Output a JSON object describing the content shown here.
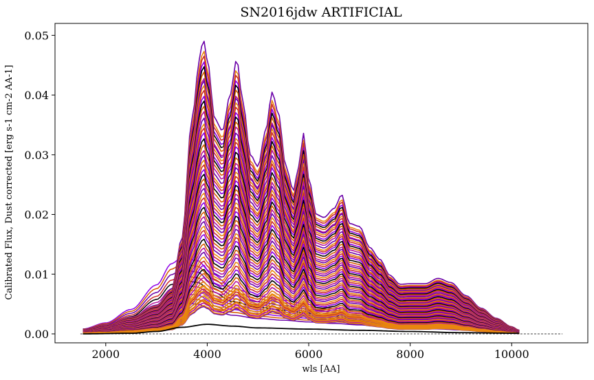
{
  "chart_data": {
    "type": "line",
    "title": "SN2016jdw ARTIFICIAL",
    "xlabel": "wls [AA]",
    "ylabel": "Calibrated Flux, Dust corrected [erg s-1 cm-2 AA-1]",
    "xlim": [
      1000,
      11500
    ],
    "ylim": [
      -0.0015,
      0.052
    ],
    "xticks": [
      2000,
      4000,
      6000,
      8000,
      10000
    ],
    "xtick_labels": [
      "2000",
      "4000",
      "6000",
      "8000",
      "10000"
    ],
    "yticks": [
      0.0,
      0.01,
      0.02,
      0.03,
      0.04,
      0.05
    ],
    "ytick_labels": [
      "0.00",
      "0.01",
      "0.02",
      "0.03",
      "0.04",
      "0.05"
    ],
    "grid": false,
    "legend": "none",
    "zero_line": {
      "x": [
        1500,
        11000
      ],
      "y": 0.0,
      "style": "dashed",
      "color": "#000000"
    },
    "wavelength_range": [
      1550,
      10150
    ],
    "color_sequence": [
      "#000000",
      "#6a00a8",
      "#8e00e6",
      "#b5109b",
      "#cc2a2a",
      "#d45a00",
      "#e8860f"
    ],
    "spectral_shape": {
      "x": [
        1550,
        2000,
        2500,
        3000,
        3300,
        3500,
        3700,
        3850,
        3920,
        4000,
        4150,
        4300,
        4450,
        4580,
        4700,
        4850,
        5000,
        5150,
        5280,
        5400,
        5550,
        5700,
        5800,
        5900,
        6000,
        6150,
        6300,
        6500,
        6650,
        6800,
        7000,
        7200,
        7400,
        7600,
        7800,
        8000,
        8300,
        8550,
        8800,
        9100,
        9400,
        9700,
        10000,
        10150
      ],
      "y": [
        0.0008,
        0.0015,
        0.0028,
        0.0048,
        0.0075,
        0.016,
        0.036,
        0.046,
        0.0495,
        0.046,
        0.036,
        0.034,
        0.04,
        0.046,
        0.039,
        0.03,
        0.028,
        0.034,
        0.0405,
        0.037,
        0.028,
        0.024,
        0.028,
        0.0336,
        0.026,
        0.02,
        0.0195,
        0.021,
        0.0233,
        0.0185,
        0.018,
        0.0145,
        0.0125,
        0.0098,
        0.0083,
        0.0084,
        0.0084,
        0.0093,
        0.0086,
        0.0064,
        0.0043,
        0.0026,
        0.0012,
        0.0006
      ]
    },
    "early_shape": {
      "x": [
        1550,
        2000,
        2500,
        3000,
        3300,
        3500,
        3800,
        4100,
        4500,
        5000,
        5500,
        6000,
        6500,
        7000,
        7500,
        8000,
        8500,
        9000,
        9500,
        10000,
        10150
      ],
      "y": [
        0.0008,
        0.0018,
        0.004,
        0.008,
        0.0115,
        0.0125,
        0.012,
        0.0098,
        0.0075,
        0.0062,
        0.0055,
        0.0048,
        0.0042,
        0.0036,
        0.003,
        0.0025,
        0.002,
        0.0016,
        0.0012,
        0.0008,
        0.0006
      ]
    },
    "lowest_spectrum": {
      "x": [
        1550,
        2500,
        3000,
        3500,
        4000,
        4500,
        5000,
        6000,
        7000,
        8000,
        9000,
        10150
      ],
      "y": [
        0.0,
        0.0001,
        0.0004,
        0.0011,
        0.0016,
        0.0013,
        0.001,
        0.0008,
        0.0006,
        0.0004,
        0.0002,
        0.0001
      ]
    },
    "series_peak_fluxes": [
      0.0495,
      0.0478,
      0.047,
      0.046,
      0.0452,
      0.0443,
      0.0432,
      0.0428,
      0.042,
      0.0412,
      0.0402,
      0.0394,
      0.0385,
      0.0376,
      0.0365,
      0.0355,
      0.0348,
      0.034,
      0.033,
      0.032,
      0.031,
      0.0302,
      0.0294,
      0.0286,
      0.0278,
      0.027,
      0.0262,
      0.0254,
      0.0246,
      0.0238,
      0.023,
      0.0222,
      0.0214,
      0.0206,
      0.0198,
      0.019,
      0.0182,
      0.0175,
      0.0168,
      0.016,
      0.0152,
      0.0145,
      0.0138,
      0.013,
      0.0123,
      0.0116,
      0.0109,
      0.0102,
      0.0095,
      0.0088,
      0.0082,
      0.0076,
      0.007,
      0.0064,
      0.0058,
      0.0052,
      0.0046
    ],
    "early_peak_fluxes": [
      0.0128,
      0.0118,
      0.0108,
      0.0098,
      0.009,
      0.0082,
      0.0075,
      0.0068,
      0.006,
      0.0052
    ]
  }
}
